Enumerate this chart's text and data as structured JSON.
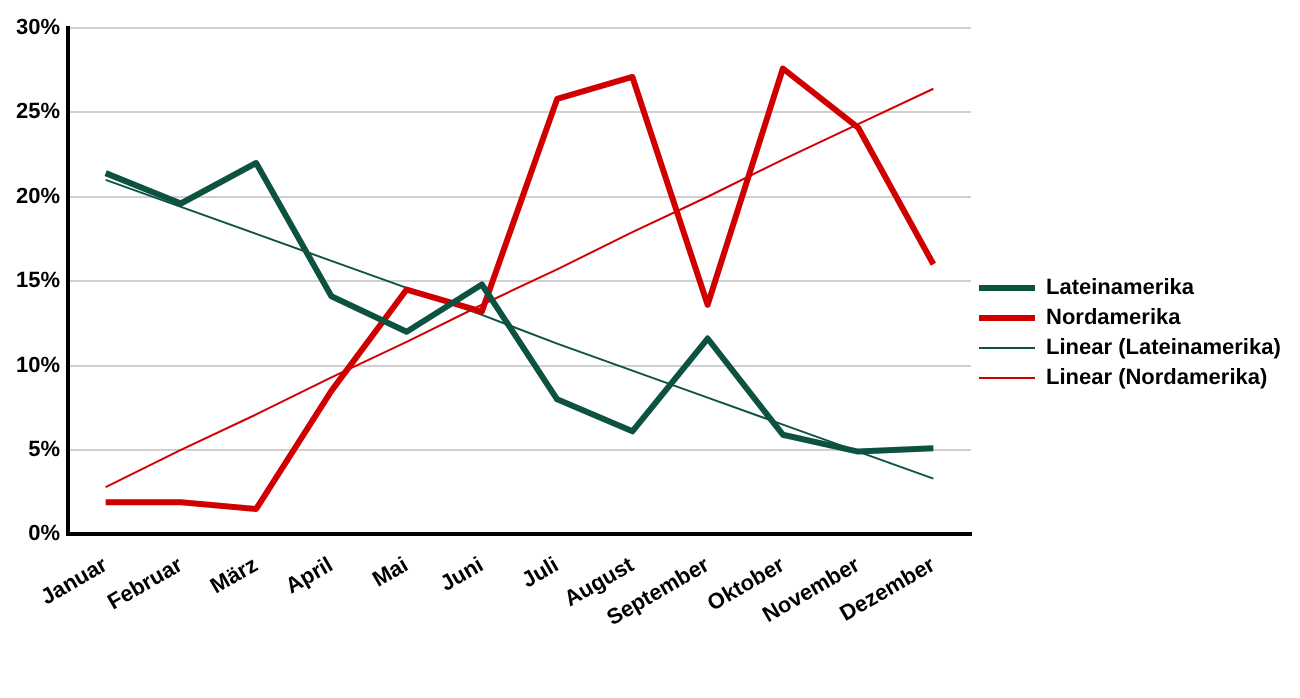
{
  "chart_data": {
    "type": "line",
    "categories": [
      "Januar",
      "Februar",
      "März",
      "April",
      "Mai",
      "Juni",
      "Juli",
      "August",
      "September",
      "Oktober",
      "November",
      "Dezember"
    ],
    "series": [
      {
        "name": "Lateinamerika",
        "color": "#0d5141",
        "values": [
          21.4,
          19.6,
          22,
          14.1,
          12,
          14.8,
          8,
          6.1,
          11.6,
          5.9,
          4.9,
          5.1
        ]
      },
      {
        "name": "Nordamerika",
        "color": "#d10000",
        "values": [
          1.9,
          1.9,
          1.5,
          8.5,
          14.5,
          13.2,
          25.8,
          27.1,
          13.6,
          27.6,
          24.1,
          16
        ]
      },
      {
        "name": "Linear (Lateinamerika)",
        "color": "#0d5141",
        "values": [
          21.0,
          19.4,
          17.8,
          16.2,
          14.6,
          13.0,
          11.3,
          9.7,
          8.1,
          6.5,
          4.9,
          3.3
        ]
      },
      {
        "name": "Linear (Nordamerika)",
        "color": "#d10000",
        "values": [
          2.8,
          5.0,
          7.1,
          9.3,
          11.4,
          13.6,
          15.7,
          17.9,
          20.0,
          22.2,
          24.3,
          26.4
        ]
      }
    ],
    "ylim": [
      0,
      30
    ],
    "yticks": [
      {
        "value": 0,
        "label": "0%"
      },
      {
        "value": 5,
        "label": "5%"
      },
      {
        "value": 10,
        "label": "10%"
      },
      {
        "value": 15,
        "label": "15%"
      },
      {
        "value": 20,
        "label": "20%"
      },
      {
        "value": 25,
        "label": "25%"
      },
      {
        "value": 30,
        "label": "30%"
      }
    ],
    "grid": "y",
    "legend": "right",
    "marker": "none",
    "line_style": "solid"
  }
}
